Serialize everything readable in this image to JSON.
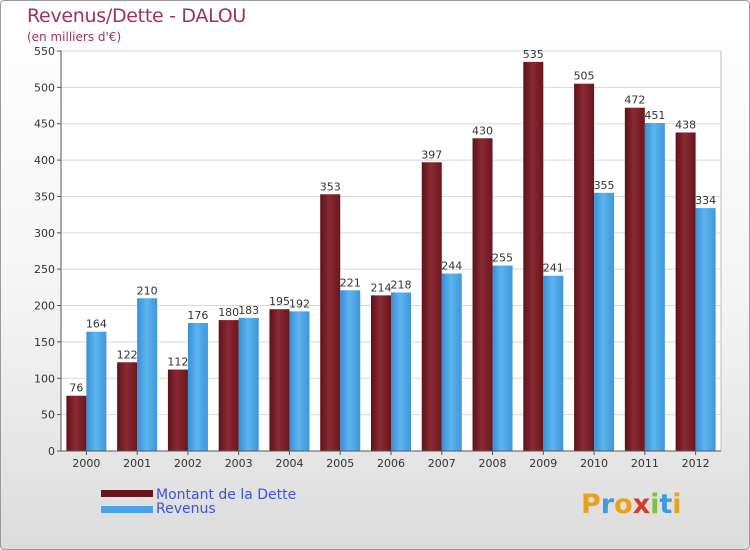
{
  "header": {
    "title": "Revenus/Dette - DALOU",
    "subtitle": "(en milliers d'€)"
  },
  "colors": {
    "title": "#a0325a",
    "dette": "#7a1f27",
    "revenus": "#4aa3e6",
    "legend_text": "#3a55d8"
  },
  "legend": {
    "dette_label": "Montant de la Dette",
    "revenus_label": "Revenus"
  },
  "logo": {
    "letters": [
      "P",
      "r",
      "o",
      "x",
      "i",
      "t",
      "i"
    ],
    "colors": [
      "#e8a020",
      "#3c9be0",
      "#e8a020",
      "#d23c28",
      "#7fc040",
      "#3c9be0",
      "#e8a020"
    ]
  },
  "chart_data": {
    "type": "bar",
    "categories": [
      "2000",
      "2001",
      "2002",
      "2003",
      "2004",
      "2005",
      "2006",
      "2007",
      "2008",
      "2009",
      "2010",
      "2011",
      "2012"
    ],
    "series": [
      {
        "name": "Montant de la Dette",
        "values": [
          76,
          122,
          112,
          180,
          195,
          353,
          214,
          397,
          430,
          535,
          505,
          472,
          438
        ]
      },
      {
        "name": "Revenus",
        "values": [
          164,
          210,
          176,
          183,
          192,
          221,
          218,
          244,
          255,
          241,
          355,
          451,
          334
        ]
      }
    ],
    "ylim": [
      0,
      550
    ],
    "yticks": [
      0,
      50,
      100,
      150,
      200,
      250,
      300,
      350,
      400,
      450,
      500,
      550
    ],
    "grid": true,
    "legend_position": "bottom-left"
  }
}
